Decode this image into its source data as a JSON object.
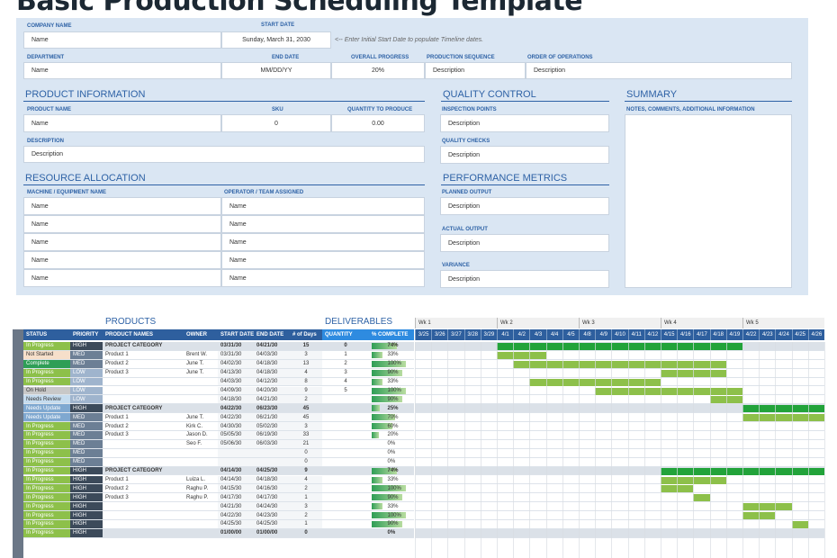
{
  "title": "Basic Production Scheduling Template",
  "top": {
    "company_name_label": "COMPANY NAME",
    "company_name": "Name",
    "start_date_label": "START DATE",
    "start_date": "Sunday, March 31, 2030",
    "start_note": "<-- Enter Initial Start Date to populate Timeline dates.",
    "department_label": "DEPARTMENT",
    "department": "Name",
    "end_date_label": "END DATE",
    "end_date": "MM/DD/YY",
    "overall_progress_label": "OVERALL PROGRESS",
    "overall_progress": "20%",
    "production_sequence_label": "PRODUCTION SEQUENCE",
    "production_sequence": "Description",
    "order_of_operations_label": "ORDER OF OPERATIONS",
    "order_of_operations": "Description"
  },
  "product": {
    "heading": "PRODUCT INFORMATION",
    "name_label": "PRODUCT NAME",
    "name": "Name",
    "sku_label": "SKU",
    "sku": "0",
    "qty_label": "QUANTITY TO PRODUCE",
    "qty": "0.00",
    "desc_label": "DESCRIPTION",
    "desc": "Description"
  },
  "resource": {
    "heading": "RESOURCE ALLOCATION",
    "machine_label": "MACHINE / EQUIPMENT NAME",
    "operator_label": "OPERATOR / TEAM ASSIGNED",
    "rows": [
      {
        "machine": "Name",
        "operator": "Name"
      },
      {
        "machine": "Name",
        "operator": "Name"
      },
      {
        "machine": "Name",
        "operator": "Name"
      },
      {
        "machine": "Name",
        "operator": "Name"
      },
      {
        "machine": "Name",
        "operator": "Name"
      }
    ]
  },
  "quality": {
    "heading": "QUALITY CONTROL",
    "inspection_label": "INSPECTION POINTS",
    "inspection": "Description",
    "checks_label": "QUALITY CHECKS",
    "checks": "Description"
  },
  "performance": {
    "heading": "PERFORMANCE METRICS",
    "planned_label": "PLANNED OUTPUT",
    "planned": "Description",
    "actual_label": "ACTUAL OUTPUT",
    "actual": "Description",
    "variance_label": "VARIANCE",
    "variance": "Description"
  },
  "summary": {
    "heading": "SUMMARY",
    "notes_label": "NOTES, COMMENTS, ADDITIONAL INFORMATION"
  },
  "schedule": {
    "products_heading": "PRODUCTS",
    "deliverables_heading": "DELIVERABLES",
    "columns": [
      "STATUS",
      "PRIORITY",
      "PRODUCT NAMES",
      "OWNER",
      "START DATE",
      "END DATE",
      "# of Days",
      "QUANTITY",
      "% COMPLETE"
    ],
    "weeks": [
      "Wk 1",
      "Wk 2",
      "Wk 3",
      "Wk 4",
      "Wk 5"
    ],
    "days": [
      "3/25",
      "3/26",
      "3/27",
      "3/28",
      "3/29",
      "4/1",
      "4/2",
      "4/3",
      "4/4",
      "4/5",
      "4/8",
      "4/9",
      "4/10",
      "4/11",
      "4/12",
      "4/15",
      "4/16",
      "4/17",
      "4/18",
      "4/19",
      "4/22",
      "4/23",
      "4/24",
      "4/25",
      "4/26"
    ],
    "colors": {
      "In Progress": "#8dc04a",
      "Not Started": "#f6dfca",
      "Complete": "#2f9e56",
      "On Hold": "#c8c8c8",
      "Needs Review": "#c5dcef",
      "Needs Update": "#7fa8d0",
      "HIGH": "#3c4a5a",
      "MED": "#6c7f95",
      "LOW": "#9fb4cd"
    },
    "rows": [
      {
        "status": "In Progress",
        "priority": "HIGH",
        "name": "PROJECT CATEGORY",
        "owner": "",
        "start": "03/31/30",
        "end": "04/21/30",
        "days": "15",
        "qty": "0",
        "pct": "74%",
        "p": 0.74,
        "cat": true,
        "gs": 5,
        "ge": 20
      },
      {
        "status": "Not Started",
        "priority": "MED",
        "name": "Product 1",
        "owner": "Brent W.",
        "start": "03/31/30",
        "end": "04/03/30",
        "days": "3",
        "qty": "1",
        "pct": "33%",
        "p": 0.33,
        "cat": false,
        "gs": 5,
        "ge": 8
      },
      {
        "status": "Complete",
        "priority": "MED",
        "name": "Product 2",
        "owner": "June T.",
        "start": "04/02/30",
        "end": "04/18/30",
        "days": "13",
        "qty": "2",
        "pct": "100%",
        "p": 1.0,
        "cat": false,
        "gs": 6,
        "ge": 19
      },
      {
        "status": "In Progress",
        "priority": "LOW",
        "name": "Product 3",
        "owner": "June T.",
        "start": "04/13/30",
        "end": "04/18/30",
        "days": "4",
        "qty": "3",
        "pct": "90%",
        "p": 0.9,
        "cat": false,
        "gs": 15,
        "ge": 19
      },
      {
        "status": "In Progress",
        "priority": "LOW",
        "name": "",
        "owner": "",
        "start": "04/03/30",
        "end": "04/12/30",
        "days": "8",
        "qty": "4",
        "pct": "33%",
        "p": 0.33,
        "cat": false,
        "gs": 7,
        "ge": 15
      },
      {
        "status": "On Hold",
        "priority": "LOW",
        "name": "",
        "owner": "",
        "start": "04/09/30",
        "end": "04/20/30",
        "days": "9",
        "qty": "5",
        "pct": "100%",
        "p": 1.0,
        "cat": false,
        "gs": 11,
        "ge": 20
      },
      {
        "status": "Needs Review",
        "priority": "LOW",
        "name": "",
        "owner": "",
        "start": "04/18/30",
        "end": "04/21/30",
        "days": "2",
        "qty": "",
        "pct": "90%",
        "p": 0.9,
        "cat": false,
        "gs": 18,
        "ge": 20
      },
      {
        "status": "Needs Update",
        "priority": "HIGH",
        "name": "PROJECT CATEGORY",
        "owner": "",
        "start": "04/22/30",
        "end": "06/23/30",
        "days": "45",
        "qty": "",
        "pct": "25%",
        "p": 0.25,
        "cat": true,
        "gs": 20,
        "ge": 25
      },
      {
        "status": "Needs Update",
        "priority": "MED",
        "name": "Product 1",
        "owner": "June T.",
        "start": "04/22/30",
        "end": "06/21/30",
        "days": "45",
        "qty": "",
        "pct": "70%",
        "p": 0.7,
        "cat": false,
        "gs": 20,
        "ge": 25
      },
      {
        "status": "In Progress",
        "priority": "MED",
        "name": "Product 2",
        "owner": "Kirk C.",
        "start": "04/30/30",
        "end": "05/02/30",
        "days": "3",
        "qty": "",
        "pct": "60%",
        "p": 0.6,
        "cat": false,
        "gs": null,
        "ge": null
      },
      {
        "status": "In Progress",
        "priority": "MED",
        "name": "Product 3",
        "owner": "Jason D.",
        "start": "05/05/30",
        "end": "06/19/30",
        "days": "33",
        "qty": "",
        "pct": "20%",
        "p": 0.2,
        "cat": false,
        "gs": null,
        "ge": null
      },
      {
        "status": "In Progress",
        "priority": "MED",
        "name": "",
        "owner": "Seo F.",
        "start": "05/06/30",
        "end": "06/03/30",
        "days": "21",
        "qty": "",
        "pct": "0%",
        "p": 0,
        "cat": false,
        "gs": null,
        "ge": null
      },
      {
        "status": "In Progress",
        "priority": "MED",
        "name": "",
        "owner": "",
        "start": "",
        "end": "",
        "days": "0",
        "qty": "",
        "pct": "0%",
        "p": 0,
        "cat": false,
        "gs": null,
        "ge": null
      },
      {
        "status": "In Progress",
        "priority": "MED",
        "name": "",
        "owner": "",
        "start": "",
        "end": "",
        "days": "0",
        "qty": "",
        "pct": "0%",
        "p": 0,
        "cat": false,
        "gs": null,
        "ge": null
      },
      {
        "status": "In Progress",
        "priority": "HIGH",
        "name": "PROJECT CATEGORY",
        "owner": "",
        "start": "04/14/30",
        "end": "04/25/30",
        "days": "9",
        "qty": "",
        "pct": "74%",
        "p": 0.74,
        "cat": true,
        "gs": 15,
        "ge": 25
      },
      {
        "status": "In Progress",
        "priority": "HIGH",
        "name": "Product 1",
        "owner": "Luiza L.",
        "start": "04/14/30",
        "end": "04/18/30",
        "days": "4",
        "qty": "",
        "pct": "33%",
        "p": 0.33,
        "cat": false,
        "gs": 15,
        "ge": 19
      },
      {
        "status": "In Progress",
        "priority": "HIGH",
        "name": "Product 2",
        "owner": "Raghu P.",
        "start": "04/15/30",
        "end": "04/16/30",
        "days": "2",
        "qty": "",
        "pct": "100%",
        "p": 1.0,
        "cat": false,
        "gs": 15,
        "ge": 17
      },
      {
        "status": "In Progress",
        "priority": "HIGH",
        "name": "Product 3",
        "owner": "Raghu P.",
        "start": "04/17/30",
        "end": "04/17/30",
        "days": "1",
        "qty": "",
        "pct": "90%",
        "p": 0.9,
        "cat": false,
        "gs": 17,
        "ge": 18
      },
      {
        "status": "In Progress",
        "priority": "HIGH",
        "name": "",
        "owner": "",
        "start": "04/21/30",
        "end": "04/24/30",
        "days": "3",
        "qty": "",
        "pct": "33%",
        "p": 0.33,
        "cat": false,
        "gs": 20,
        "ge": 23
      },
      {
        "status": "In Progress",
        "priority": "HIGH",
        "name": "",
        "owner": "",
        "start": "04/22/30",
        "end": "04/23/30",
        "days": "2",
        "qty": "",
        "pct": "100%",
        "p": 1.0,
        "cat": false,
        "gs": 20,
        "ge": 22
      },
      {
        "status": "In Progress",
        "priority": "HIGH",
        "name": "",
        "owner": "",
        "start": "04/25/30",
        "end": "04/25/30",
        "days": "1",
        "qty": "",
        "pct": "90%",
        "p": 0.9,
        "cat": false,
        "gs": 23,
        "ge": 24
      },
      {
        "status": "In Progress",
        "priority": "HIGH",
        "name": "",
        "owner": "",
        "start": "01/00/00",
        "end": "01/00/00",
        "days": "0",
        "qty": "",
        "pct": "0%",
        "p": 0,
        "cat": true,
        "gs": null,
        "ge": null
      }
    ]
  }
}
